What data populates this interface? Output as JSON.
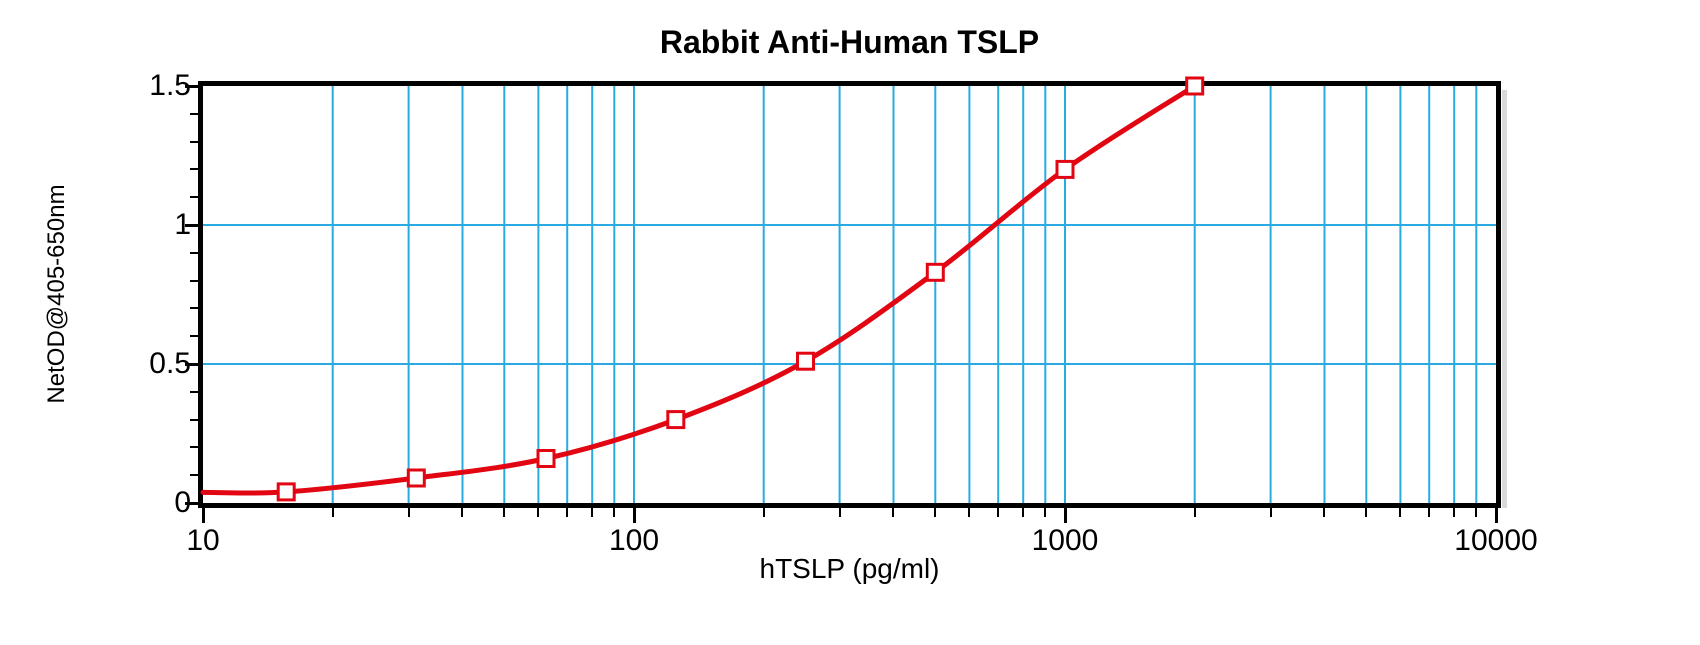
{
  "chart_data": {
    "type": "line",
    "title": "Rabbit Anti-Human TSLP",
    "xlabel": "hTSLP (pg/ml)",
    "ylabel": "NetOD@405-650nm",
    "x_scale": "log",
    "y_scale": "linear",
    "xlim": [
      10,
      10000
    ],
    "ylim": [
      0,
      1.5
    ],
    "grid": "on",
    "legend": "none",
    "series": [
      {
        "marker": "open-square",
        "x": [
          15.6,
          31.25,
          62.5,
          125,
          250,
          500,
          1000,
          2000
        ],
        "y": [
          0.04,
          0.09,
          0.16,
          0.3,
          0.51,
          0.83,
          1.2,
          1.5
        ]
      }
    ],
    "curve_lead_in": {
      "x": 10,
      "y": 0.038
    },
    "x_ticks": [
      {
        "label": "10",
        "value": 10
      },
      {
        "label": "100",
        "value": 100
      },
      {
        "label": "1000",
        "value": 1000
      },
      {
        "label": "10000",
        "value": 10000
      }
    ],
    "y_ticks": [
      {
        "label": "0",
        "value": 0
      },
      {
        "label": "0.5",
        "value": 0.5
      },
      {
        "label": "1",
        "value": 1
      },
      {
        "label": "1.5",
        "value": 1.5
      }
    ],
    "colors": {
      "curve": "#E20613",
      "grid": "#29ABE2",
      "axis": "#000000",
      "text": "#000000",
      "background": "#FFFFFF",
      "marker_fill": "#FFFFFF",
      "shadow": "#D9D9D9"
    }
  }
}
